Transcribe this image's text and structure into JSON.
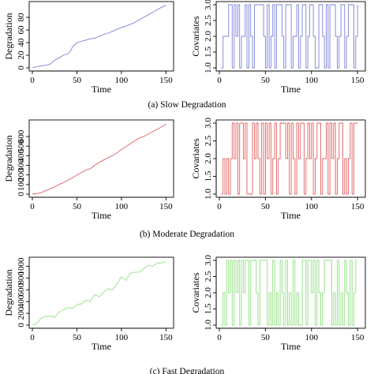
{
  "figure": {
    "captions": [
      "(a) Slow Degradation",
      "(b) Moderate Degradation",
      "(c) Fast Degradation"
    ]
  },
  "chart_data": [
    {
      "type": "line",
      "panel": "a-left",
      "xlabel": "Time",
      "ylabel": "Degradation",
      "xlim": [
        0,
        155
      ],
      "ylim": [
        0,
        100
      ],
      "xticks": [
        0,
        50,
        100,
        150
      ],
      "yticks": [
        0,
        20,
        40,
        60,
        80
      ],
      "color": "#7b82d6",
      "x": [
        0,
        5,
        10,
        15,
        20,
        25,
        30,
        35,
        40,
        43,
        45,
        50,
        55,
        60,
        65,
        70,
        75,
        80,
        85,
        90,
        95,
        100,
        105,
        110,
        115,
        120,
        125,
        130,
        135,
        140,
        145,
        150
      ],
      "series": [
        {
          "values": [
            0,
            2,
            3,
            4,
            6,
            12,
            16,
            20,
            22,
            27,
            33,
            40,
            42,
            44,
            46,
            47,
            50,
            53,
            55,
            58,
            61,
            64,
            66,
            69,
            72,
            76,
            80,
            84,
            88,
            92,
            96,
            99
          ]
        }
      ]
    },
    {
      "type": "line",
      "panel": "a-right",
      "xlabel": "Time",
      "ylabel": "Covariates",
      "xlim": [
        0,
        155
      ],
      "ylim": [
        1.0,
        3.0
      ],
      "xticks": [
        0,
        50,
        100,
        150
      ],
      "yticks": [
        1.0,
        1.5,
        2.0,
        2.5,
        3.0
      ],
      "color": "#7b82d6",
      "x": [
        2,
        4,
        6,
        10,
        12,
        14,
        16,
        18,
        20,
        22,
        24,
        26,
        28,
        30,
        32,
        34,
        36,
        38,
        40,
        44,
        48,
        50,
        52,
        54,
        56,
        58,
        60,
        62,
        64,
        68,
        70,
        72,
        76,
        78,
        80,
        84,
        86,
        88,
        90,
        92,
        94,
        96,
        98,
        100,
        102,
        104,
        108,
        110,
        112,
        114,
        116,
        118,
        120,
        124,
        126,
        128,
        130,
        132,
        134,
        136,
        138,
        140,
        142,
        146,
        148,
        150
      ],
      "series": [
        {
          "values": [
            1,
            2,
            2,
            3,
            3,
            1,
            3,
            2,
            3,
            1,
            2,
            2,
            3,
            1,
            3,
            2,
            1,
            3,
            3,
            3,
            2,
            1,
            3,
            1,
            2,
            3,
            1,
            3,
            3,
            2,
            1,
            3,
            3,
            1,
            2,
            3,
            1,
            2,
            3,
            3,
            1,
            2,
            3,
            3,
            2,
            1,
            3,
            3,
            2,
            1,
            3,
            1,
            3,
            3,
            2,
            1,
            2,
            3,
            3,
            1,
            2,
            3,
            3,
            1,
            2,
            3
          ]
        }
      ]
    },
    {
      "type": "line",
      "panel": "b-left",
      "xlabel": "Time",
      "ylabel": "Degradation",
      "xlim": [
        0,
        155
      ],
      "ylim": [
        0,
        740
      ],
      "xticks": [
        0,
        50,
        100,
        150
      ],
      "yticks": [
        0,
        100,
        200,
        300,
        400,
        500,
        600
      ],
      "color": "#e06060",
      "x": [
        0,
        5,
        10,
        15,
        20,
        25,
        30,
        35,
        40,
        45,
        50,
        55,
        60,
        65,
        70,
        75,
        80,
        85,
        90,
        95,
        100,
        105,
        110,
        115,
        120,
        125,
        130,
        135,
        140,
        145,
        150
      ],
      "series": [
        {
          "values": [
            0,
            5,
            15,
            35,
            55,
            75,
            100,
            120,
            145,
            170,
            200,
            225,
            250,
            265,
            300,
            330,
            355,
            380,
            400,
            430,
            465,
            495,
            525,
            555,
            585,
            600,
            625,
            650,
            675,
            700,
            730
          ]
        }
      ]
    },
    {
      "type": "line",
      "panel": "b-right",
      "xlabel": "Time",
      "ylabel": "Covariates",
      "xlim": [
        0,
        155
      ],
      "ylim": [
        1.0,
        3.0
      ],
      "xticks": [
        0,
        50,
        100,
        150
      ],
      "yticks": [
        1.0,
        1.5,
        2.0,
        2.5,
        3.0
      ],
      "color": "#e06060",
      "x": [
        2,
        4,
        6,
        8,
        10,
        12,
        14,
        16,
        18,
        20,
        22,
        24,
        26,
        28,
        30,
        34,
        36,
        38,
        40,
        42,
        44,
        46,
        48,
        50,
        52,
        54,
        56,
        58,
        60,
        62,
        64,
        66,
        68,
        72,
        74,
        76,
        78,
        80,
        82,
        84,
        86,
        88,
        90,
        92,
        94,
        96,
        98,
        100,
        102,
        104,
        106,
        108,
        110,
        112,
        116,
        118,
        120,
        122,
        124,
        126,
        128,
        130,
        132,
        134,
        136,
        138,
        140,
        142,
        144,
        146,
        148,
        150
      ],
      "series": [
        {
          "values": [
            1,
            2,
            1,
            2,
            1,
            2,
            3,
            2,
            3,
            1,
            3,
            3,
            2,
            3,
            1,
            1,
            3,
            2,
            3,
            2,
            1,
            3,
            1,
            3,
            2,
            3,
            1,
            2,
            3,
            1,
            2,
            3,
            3,
            2,
            3,
            1,
            3,
            2,
            1,
            3,
            2,
            3,
            3,
            1,
            2,
            3,
            2,
            3,
            1,
            2,
            3,
            3,
            1,
            2,
            3,
            1,
            3,
            2,
            3,
            1,
            2,
            3,
            3,
            1,
            2,
            1,
            2,
            3,
            1,
            3,
            3,
            3
          ]
        }
      ]
    },
    {
      "type": "line",
      "panel": "c-left",
      "xlabel": "Time",
      "ylabel": "Degradation",
      "xlim": [
        0,
        155
      ],
      "ylim": [
        0,
        1100
      ],
      "xticks": [
        0,
        50,
        100,
        150
      ],
      "yticks": [
        0,
        200,
        400,
        600,
        800,
        1000
      ],
      "color": "#90e080",
      "x": [
        0,
        5,
        10,
        15,
        20,
        25,
        30,
        35,
        40,
        45,
        50,
        55,
        60,
        65,
        70,
        75,
        80,
        85,
        90,
        95,
        100,
        105,
        110,
        115,
        120,
        125,
        130,
        135,
        140,
        145,
        150
      ],
      "series": [
        {
          "values": [
            0,
            30,
            120,
            150,
            150,
            130,
            220,
            260,
            300,
            280,
            350,
            360,
            420,
            400,
            520,
            480,
            560,
            620,
            600,
            700,
            820,
            760,
            880,
            900,
            900,
            960,
            1020,
            1000,
            1050,
            1060,
            1080
          ]
        }
      ]
    },
    {
      "type": "line",
      "panel": "c-right",
      "xlabel": "Time",
      "ylabel": "Covariates",
      "xlim": [
        0,
        155
      ],
      "ylim": [
        1.0,
        3.0
      ],
      "xticks": [
        0,
        50,
        100,
        150
      ],
      "yticks": [
        1.0,
        1.5,
        2.0,
        2.5,
        3.0
      ],
      "color": "#90e080",
      "x": [
        2,
        4,
        6,
        8,
        10,
        12,
        14,
        16,
        18,
        20,
        22,
        24,
        26,
        28,
        30,
        32,
        34,
        38,
        40,
        42,
        44,
        46,
        50,
        52,
        54,
        56,
        58,
        60,
        62,
        64,
        66,
        68,
        70,
        72,
        74,
        76,
        78,
        80,
        82,
        84,
        86,
        90,
        92,
        94,
        96,
        98,
        100,
        102,
        104,
        106,
        108,
        110,
        112,
        114,
        116,
        120,
        122,
        124,
        126,
        128,
        130,
        132,
        134,
        136,
        138,
        140,
        142,
        144,
        146,
        148,
        150
      ],
      "series": [
        {
          "values": [
            1,
            2,
            1,
            3,
            2,
            3,
            1,
            3,
            2,
            3,
            1,
            3,
            2,
            3,
            3,
            1,
            3,
            3,
            2,
            1,
            3,
            3,
            3,
            1,
            2,
            1,
            3,
            1,
            2,
            1,
            3,
            2,
            1,
            3,
            1,
            2,
            1,
            3,
            1,
            2,
            1,
            3,
            3,
            1,
            3,
            3,
            2,
            3,
            1,
            3,
            2,
            1,
            2,
            3,
            3,
            3,
            1,
            2,
            1,
            3,
            1,
            2,
            1,
            3,
            2,
            1,
            3,
            1,
            2,
            3,
            3
          ]
        }
      ]
    }
  ]
}
